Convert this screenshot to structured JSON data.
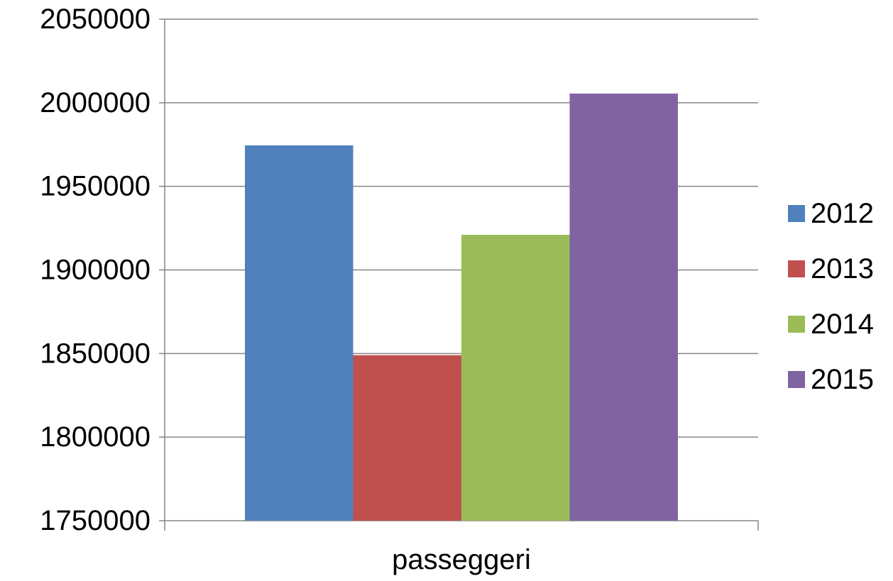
{
  "chart_data": {
    "type": "bar",
    "title": "",
    "xlabel": "",
    "ylabel": "",
    "categories": [
      "passeggeri"
    ],
    "series": [
      {
        "name": "2012",
        "values": [
          1974500
        ],
        "color": "#4F81BD"
      },
      {
        "name": "2013",
        "values": [
          1849000
        ],
        "color": "#C0504D"
      },
      {
        "name": "2014",
        "values": [
          1921000
        ],
        "color": "#9BBB59"
      },
      {
        "name": "2015",
        "values": [
          2005500
        ],
        "color": "#8064A2"
      }
    ],
    "ylim": [
      1750000,
      2050000
    ],
    "yticks": [
      "1750000",
      "1800000",
      "1850000",
      "1900000",
      "1950000",
      "2000000",
      "2050000"
    ],
    "ytick_values": [
      1750000,
      1800000,
      1850000,
      1900000,
      1950000,
      2000000,
      2050000
    ],
    "grid": true,
    "legend_position": "right",
    "colors": {
      "gridline": "#868686",
      "axis": "#868686",
      "text": "#000000"
    }
  }
}
